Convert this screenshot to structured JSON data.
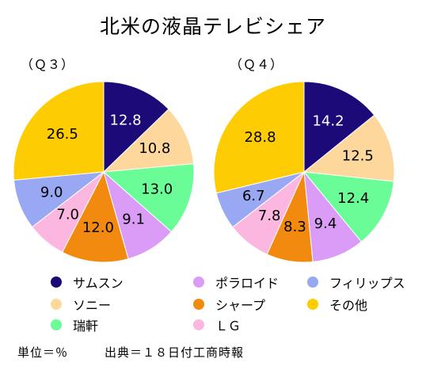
{
  "chart_data": {
    "type": "pie",
    "title": "北米の液晶テレビシェア",
    "legend": [
      {
        "label": "サムスン",
        "color": "#1c0a78"
      },
      {
        "label": "ソニー",
        "color": "#fdd79c"
      },
      {
        "label": "瑞軒",
        "color": "#6afc97"
      },
      {
        "label": "ポラロイド",
        "color": "#da9cf7"
      },
      {
        "label": "シャープ",
        "color": "#f28a0f"
      },
      {
        "label": "ＬＧ",
        "color": "#fbb7e0"
      },
      {
        "label": "フィリップス",
        "color": "#98a8f3"
      },
      {
        "label": "その他",
        "color": "#fdcc02"
      }
    ],
    "pies": [
      {
        "label": "（Ｑ３）",
        "slices": [
          {
            "value": 12.8,
            "text": "12.8"
          },
          {
            "value": 10.8,
            "text": "10.8"
          },
          {
            "value": 13.0,
            "text": "13.0"
          },
          {
            "value": 9.1,
            "text": "9.1"
          },
          {
            "value": 12.0,
            "text": "12.0"
          },
          {
            "value": 7.0,
            "text": "7.0"
          },
          {
            "value": 9.0,
            "text": "9.0"
          },
          {
            "value": 26.5,
            "text": "26.5"
          }
        ]
      },
      {
        "label": "（Ｑ４）",
        "slices": [
          {
            "value": 14.2,
            "text": "14.2"
          },
          {
            "value": 12.5,
            "text": "12.5"
          },
          {
            "value": 12.4,
            "text": "12.4"
          },
          {
            "value": 9.4,
            "text": "9.4"
          },
          {
            "value": 8.3,
            "text": "8.3"
          },
          {
            "value": 7.8,
            "text": "7.8"
          },
          {
            "value": 6.7,
            "text": "6.7"
          },
          {
            "value": 28.8,
            "text": "28.8"
          }
        ]
      }
    ]
  },
  "notes": {
    "unit": "単位＝％",
    "source": "出典＝１８日付工商時報"
  }
}
